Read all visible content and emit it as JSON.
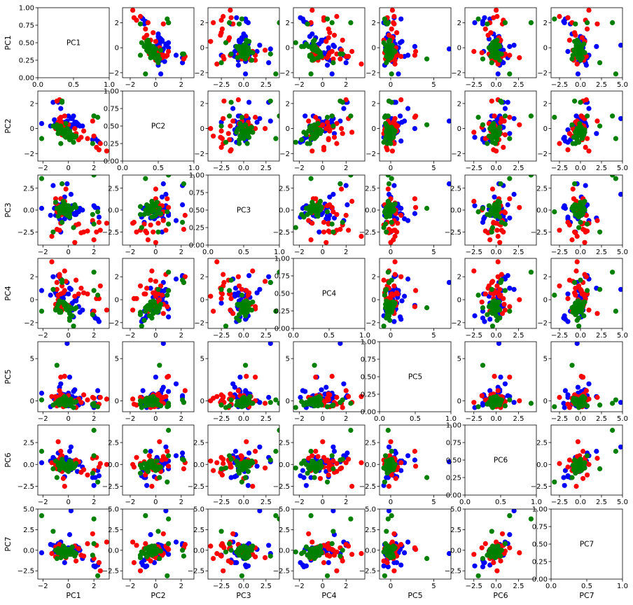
{
  "chart_data": {
    "type": "scatter-matrix",
    "variables": [
      "PC1",
      "PC2",
      "PC3",
      "PC4",
      "PC5",
      "PC6",
      "PC7"
    ],
    "series": [
      {
        "name": "blue",
        "color": "#0000ff"
      },
      {
        "name": "red",
        "color": "#ff0000"
      },
      {
        "name": "green",
        "color": "#008000"
      }
    ],
    "axes": {
      "PC1": {
        "range": [
          -2.4,
          3.2
        ],
        "ticks": [
          -2,
          0,
          2
        ],
        "labels": [
          "−2",
          "0",
          "2"
        ]
      },
      "PC2": {
        "range": [
          -2.6,
          3.0
        ],
        "ticks": [
          -2,
          0,
          2
        ],
        "labels": [
          "−2",
          "0",
          "2"
        ]
      },
      "PC3": {
        "range": [
          -4.0,
          4.0
        ],
        "ticks": [
          -2.5,
          0.0,
          2.5
        ],
        "labels": [
          "−2.5",
          "0.0",
          "2.5"
        ]
      },
      "PC4": {
        "range": [
          -2.5,
          3.6
        ],
        "ticks": [
          -2,
          0,
          2
        ],
        "labels": [
          "−2",
          "0",
          "2"
        ]
      },
      "PC5": {
        "range": [
          -1.3,
          7.0
        ],
        "ticks": [
          0,
          5
        ],
        "labels": [
          "0",
          "5"
        ]
      },
      "PC6": {
        "range": [
          -3.5,
          4.5
        ],
        "ticks": [
          -2.5,
          0.0,
          2.5
        ],
        "labels": [
          "−2.5",
          "0.0",
          "2.5"
        ]
      },
      "PC7": {
        "range": [
          -3.5,
          5.0
        ],
        "ticks": [
          -2.5,
          0.0,
          2.5,
          5.0
        ],
        "labels": [
          "−2.5",
          "0.0",
          "2.5",
          "5.0"
        ]
      }
    },
    "diagonal": {
      "xlim": [
        0,
        1
      ],
      "ylim": [
        0,
        1
      ],
      "xticks": [
        0,
        0.5,
        1
      ],
      "xtick_labels": [
        "0.0",
        "0.5",
        "1.0"
      ],
      "yticks": [
        0,
        0.25,
        0.5,
        0.75,
        1
      ],
      "ytick_labels": [
        "0.00",
        "0.25",
        "0.50",
        "0.75",
        "1.00"
      ],
      "text": [
        "PC1",
        "PC2",
        "PC3",
        "PC4",
        "PC5",
        "PC6",
        "PC7"
      ]
    },
    "xlabels": [
      "PC1",
      "PC2",
      "PC3",
      "PC4",
      "PC5",
      "PC6",
      "PC7"
    ],
    "ylabels": [
      "PC1",
      "PC2",
      "PC3",
      "PC4",
      "PC5",
      "PC6",
      "PC7"
    ],
    "points": {
      "blue": {
        "PC1": [
          -1.0,
          -0.7,
          0.3,
          0.6,
          -0.3,
          0.2,
          -0.6,
          0.9,
          2.0,
          2.4,
          1.9,
          -0.8,
          0.1,
          0.0,
          -0.5,
          -1.1,
          0.4,
          0.7,
          -0.2,
          -0.9,
          0.1,
          0.3,
          1.1,
          -0.4,
          -0.1,
          0.5,
          -0.6,
          0.2,
          -0.3,
          0.8,
          -2.1,
          -1.4,
          -1.2,
          -0.8,
          0.0,
          -0.3,
          0.1,
          2.3,
          2.1,
          0.6
        ],
        "PC2": [
          0.4,
          0.6,
          0.2,
          0.5,
          -0.3,
          0.3,
          1.6,
          0.2,
          -0.7,
          -1.1,
          -0.9,
          2.1,
          0.0,
          1.0,
          -0.2,
          0.7,
          1.0,
          0.4,
          0.1,
          0.4,
          -0.2,
          0.8,
          0.2,
          0.2,
          0.6,
          0.5,
          0.5,
          0.8,
          -0.1,
          0.3,
          0.4,
          0.2,
          2.1,
          0.0,
          0.3,
          0.5,
          -0.4,
          -1.0,
          -0.8,
          0.2
        ],
        "PC3": [
          -0.6,
          -1.0,
          0.3,
          -0.3,
          0.5,
          0.0,
          -1.2,
          0.2,
          0.5,
          -0.8,
          -1.4,
          0.6,
          -0.4,
          -0.6,
          0.7,
          0.2,
          -0.4,
          0.1,
          -0.7,
          0.4,
          -0.2,
          0.5,
          0.0,
          0.3,
          3.0,
          -0.5,
          -2.5,
          1.8,
          -1.0,
          -0.2,
          0.2,
          -0.6,
          2.8,
          -0.2,
          0.4,
          1.5,
          -0.9,
          0.2,
          0.3,
          -0.5
        ],
        "PC4": [
          0.6,
          0.3,
          -0.9,
          0.0,
          -0.3,
          -0.5,
          1.8,
          -1.1,
          -1.4,
          -1.9,
          -1.0,
          2.1,
          -0.5,
          -0.8,
          0.2,
          0.8,
          -1.5,
          0.3,
          -0.6,
          0.4,
          -0.8,
          -0.3,
          -0.9,
          0.1,
          1.5,
          -0.1,
          -0.3,
          0.9,
          0.5,
          -0.6,
          0.8,
          0.4,
          2.0,
          -0.3,
          0.5,
          0.6,
          1.0,
          -1.7,
          -1.6,
          -0.1
        ],
        "PC5": [
          0.2,
          1.6,
          0.5,
          0.0,
          0.7,
          -0.3,
          2.0,
          0.3,
          -0.8,
          0.4,
          -0.5,
          0.6,
          2.8,
          -0.6,
          0.8,
          0.2,
          1.1,
          0.2,
          -0.5,
          0.0,
          0.6,
          0.1,
          -0.3,
          0.2,
          6.8,
          1.3,
          0.0,
          -0.2,
          0.7,
          -0.5,
          0.9,
          -0.7,
          0.4,
          -0.2,
          0.9,
          0.0,
          0.5,
          1.2,
          -0.3,
          0.3
        ],
        "PC6": [
          -0.3,
          0.2,
          0.1,
          0.0,
          -0.2,
          -0.6,
          1.0,
          0.3,
          -2.4,
          -1.3,
          -1.5,
          1.3,
          0.5,
          -0.5,
          0.2,
          0.6,
          0.4,
          -0.8,
          0.8,
          0.3,
          -0.1,
          0.1,
          -0.3,
          0.5,
          0.3,
          0.4,
          -0.7,
          2.0,
          -1.4,
          0.0,
          0.2,
          0.4,
          0.8,
          -0.4,
          0.2,
          -0.2,
          1.5,
          -0.7,
          -1.5,
          0.3
        ],
        "PC7": [
          0.1,
          -0.3,
          0.3,
          0.5,
          -0.1,
          -0.4,
          1.0,
          0.0,
          -1.9,
          -1.5,
          -1.2,
          0.8,
          0.2,
          -0.5,
          0.4,
          -0.2,
          0.1,
          -0.1,
          -0.6,
          0.6,
          -0.3,
          0.0,
          -1.0,
          0.2,
          -0.4,
          0.5,
          -0.6,
          4.8,
          -1.5,
          0.3,
          -0.3,
          0.7,
          0.6,
          -0.2,
          0.3,
          0.1,
          1.9,
          -1.8,
          -2.0,
          0.2
        ]
      },
      "red": {
        "PC1": [
          -1.3,
          -0.9,
          -0.8,
          -0.6,
          -0.4,
          -1.0,
          -0.7,
          -0.5,
          0.0,
          -0.3,
          2.0,
          2.2,
          1.5,
          0.6,
          0.8,
          1.2,
          2.5,
          -0.9,
          -0.6,
          -0.8,
          -0.2,
          -0.7,
          -0.5,
          -1.0,
          1.0,
          1.9,
          -0.3,
          2.4,
          0.5,
          -0.4,
          -0.6,
          3.0
        ],
        "PC2": [
          3.2,
          2.2,
          0.5,
          0.2,
          -0.1,
          0.0,
          0.8,
          0.4,
          0.3,
          -0.3,
          -0.6,
          -1.5,
          -0.8,
          -0.4,
          -0.9,
          -0.2,
          -1.2,
          0.1,
          0.9,
          0.3,
          0.0,
          2.3,
          -0.5,
          0.2,
          -0.7,
          0.6,
          1.0,
          -1.7,
          0.0,
          0.1,
          0.6,
          -1.8
        ],
        "PC3": [
          -3.0,
          -2.2,
          0.5,
          -1.5,
          0.6,
          1.3,
          -2.3,
          -0.5,
          -0.4,
          1.0,
          -3.4,
          -2.5,
          -2.4,
          -1.7,
          -1.6,
          -2.5,
          -2.3,
          -0.2,
          1.3,
          0.3,
          2.4,
          -0.6,
          -0.3,
          0.8,
          -2.6,
          -1.2,
          0.3,
          -1.4,
          -3.7,
          0.0,
          -0.2,
          -1.5
        ],
        "PC4": [
          3.3,
          1.5,
          0.4,
          0.5,
          0.6,
          -0.8,
          2.2,
          1.2,
          -0.5,
          2.5,
          -1.0,
          0.1,
          0.5,
          1.7,
          0.5,
          0.6,
          1.2,
          0.9,
          -0.6,
          0.0,
          1.6,
          2.0,
          -0.9,
          -0.4,
          1.0,
          -1.2,
          0.8,
          0.1,
          0.3,
          -0.2,
          -0.4,
          -0.9
        ],
        "PC5": [
          0.5,
          -0.2,
          0.3,
          0.8,
          -0.7,
          0.0,
          0.5,
          -0.4,
          0.6,
          -0.2,
          0.3,
          -0.5,
          0.1,
          -0.8,
          0.2,
          0.7,
          0.4,
          -0.6,
          2.8,
          0.0,
          -0.3,
          1.2,
          -0.1,
          0.5,
          -0.2,
          0.4,
          2.9,
          -0.4,
          0.0,
          0.6,
          -0.3,
          0.2
        ],
        "PC6": [
          0.2,
          -0.5,
          0.5,
          -0.3,
          0.0,
          0.3,
          0.6,
          -0.8,
          -0.2,
          -2.5,
          -0.7,
          0.8,
          -1.2,
          0.5,
          0.3,
          -0.6,
          0.1,
          0.4,
          1.5,
          2.6,
          -0.4,
          0.2,
          1.0,
          -0.1,
          -0.9,
          0.7,
          -0.2,
          -0.3,
          0.4,
          -1.6,
          0.9,
          0.0
        ],
        "PC7": [
          -0.4,
          0.3,
          -0.6,
          0.4,
          0.2,
          -0.8,
          0.5,
          -0.2,
          0.1,
          -0.5,
          -1.0,
          0.6,
          0.8,
          -1.3,
          0.2,
          -0.7,
          -2.5,
          0.0,
          0.3,
          -0.3,
          -0.9,
          0.7,
          -0.1,
          0.4,
          -0.6,
          2.0,
          0.1,
          -1.5,
          0.5,
          0.3,
          -0.4,
          1.0
        ]
      },
      "green": {
        "PC1": [
          -0.2,
          0.0,
          -0.1,
          -0.3,
          0.1,
          -0.5,
          -0.8,
          0.2,
          -0.4,
          -0.6,
          0.3,
          -0.2,
          -1.0,
          -0.7,
          2.0,
          2.3,
          -0.5,
          -2.1,
          -0.3,
          0.1,
          -0.9,
          -0.4,
          0.4,
          -0.6,
          -0.1,
          0.2,
          -1.2,
          -0.5,
          0.0,
          -0.3,
          2.0,
          1.9,
          -0.8,
          -0.2,
          0.6,
          -0.4,
          0.1,
          0.5,
          -0.7,
          -0.3
        ],
        "PC2": [
          -0.5,
          -0.3,
          0.0,
          -0.6,
          -0.2,
          -0.4,
          -0.1,
          -0.8,
          -0.3,
          0.2,
          -0.5,
          -0.7,
          0.1,
          -0.2,
          1.0,
          0.9,
          2.2,
          -0.8,
          -0.4,
          -0.9,
          0.3,
          -0.3,
          -1.1,
          -1.2,
          0.0,
          -0.5,
          0.2,
          2.1,
          -0.6,
          -0.2,
          1.0,
          -1.2,
          -0.4,
          0.4,
          -0.6,
          -0.1,
          -0.3,
          -0.7,
          0.1,
          -0.4
        ],
        "PC3": [
          0.3,
          -0.2,
          0.5,
          -0.4,
          0.1,
          0.4,
          -0.7,
          0.0,
          0.6,
          -0.3,
          0.2,
          -0.1,
          0.9,
          0.3,
          -1.6,
          -0.2,
          3.0,
          3.6,
          0.0,
          -0.5,
          0.2,
          1.0,
          -2.0,
          0.4,
          -0.6,
          0.1,
          -2.5,
          -1.4,
          0.5,
          0.7,
          4.0,
          -0.5,
          0.2,
          -0.4,
          0.3,
          0.0,
          -0.8,
          0.6,
          -0.2,
          0.4
        ],
        "PC4": [
          -0.8,
          -0.6,
          -0.9,
          -0.5,
          -1.2,
          -0.2,
          -0.4,
          -0.7,
          -0.3,
          -1.0,
          -1.4,
          -0.6,
          -0.9,
          -0.1,
          0.8,
          0.4,
          1.5,
          -1.0,
          -0.4,
          -1.8,
          -0.7,
          -0.2,
          -2.3,
          -1.1,
          -0.5,
          -0.8,
          0.9,
          1.7,
          -0.6,
          -0.3,
          2.4,
          -1.3,
          -0.9,
          -0.4,
          -0.7,
          -0.2,
          -1.6,
          -0.8,
          -1.1,
          -0.5
        ],
        "PC5": [
          -0.4,
          -0.2,
          0.0,
          -0.5,
          -0.3,
          0.2,
          -0.1,
          -0.6,
          0.1,
          -0.4,
          -0.2,
          0.3,
          -0.3,
          -0.5,
          -0.6,
          -0.7,
          -0.2,
          0.1,
          0.4,
          -0.1,
          4.2,
          -0.3,
          -0.8,
          0.0,
          -0.4,
          0.2,
          -0.5,
          0.1,
          -0.2,
          0.5,
          -0.3,
          -0.4,
          0.0,
          -0.6,
          -0.1,
          0.3,
          -0.5,
          -0.2,
          0.1,
          -0.4
        ],
        "PC6": [
          -0.3,
          0.1,
          -0.2,
          0.0,
          -0.4,
          0.3,
          -0.1,
          -0.5,
          0.2,
          -0.3,
          0.0,
          -0.6,
          0.4,
          -0.2,
          1.0,
          -2.0,
          0.5,
          1.5,
          -0.3,
          0.1,
          -1.5,
          0.2,
          -0.4,
          -0.1,
          -0.7,
          0.3,
          -0.5,
          0.6,
          -0.8,
          0.0,
          3.9,
          -1.0,
          0.2,
          -0.3,
          0.1,
          -0.4,
          0.4,
          -0.2,
          -0.6,
          0.0
        ],
        "PC7": [
          -0.2,
          0.1,
          -0.4,
          0.3,
          -0.5,
          0.0,
          -0.3,
          0.2,
          -0.6,
          -0.1,
          0.4,
          -0.8,
          0.0,
          -0.3,
          0.8,
          -3.1,
          -0.7,
          4.2,
          0.2,
          -0.4,
          -1.0,
          0.5,
          -0.2,
          -0.9,
          0.1,
          -0.5,
          2.3,
          0.0,
          -0.3,
          0.3,
          3.8,
          -0.6,
          0.2,
          -0.1,
          -0.4,
          0.5,
          -0.2,
          -0.7,
          0.1,
          -0.3
        ]
      }
    }
  }
}
